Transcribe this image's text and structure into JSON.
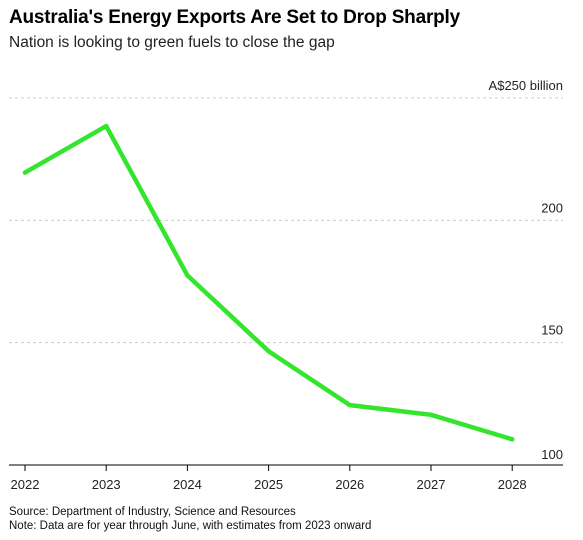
{
  "title": "Australia's Energy Exports Are Set to Drop Sharply",
  "subtitle": "Nation is looking to green fuels to close the gap",
  "footer": {
    "source": "Source: Department of Industry, Science and Resources",
    "note": "Note: Data are for year through June, with estimates from 2023 onward"
  },
  "colors": {
    "line": "#33e52c",
    "grid": "#cccccc",
    "axis": "#000000"
  },
  "chart_data": {
    "type": "line",
    "title": "Australia's Energy Exports Are Set to Drop Sharply",
    "subtitle": "Nation is looking to green fuels to close the gap",
    "categories": [
      "2022",
      "2023",
      "2024",
      "2025",
      "2026",
      "2027",
      "2028"
    ],
    "x_tick_labels": [
      "2022",
      "2023",
      "2024",
      "2025",
      "2026",
      "2027",
      "2028"
    ],
    "series": [
      {
        "values": [
          219.5,
          238.5,
          177.5,
          146.5,
          124.5,
          120.5,
          110.5
        ]
      }
    ],
    "ylim": [
      100,
      250
    ],
    "y_ticks": [
      250,
      200,
      150,
      100
    ],
    "y_tick_labels": [
      "A$250 billion",
      "200",
      "150",
      "100"
    ],
    "grid": true,
    "legend": "none"
  }
}
